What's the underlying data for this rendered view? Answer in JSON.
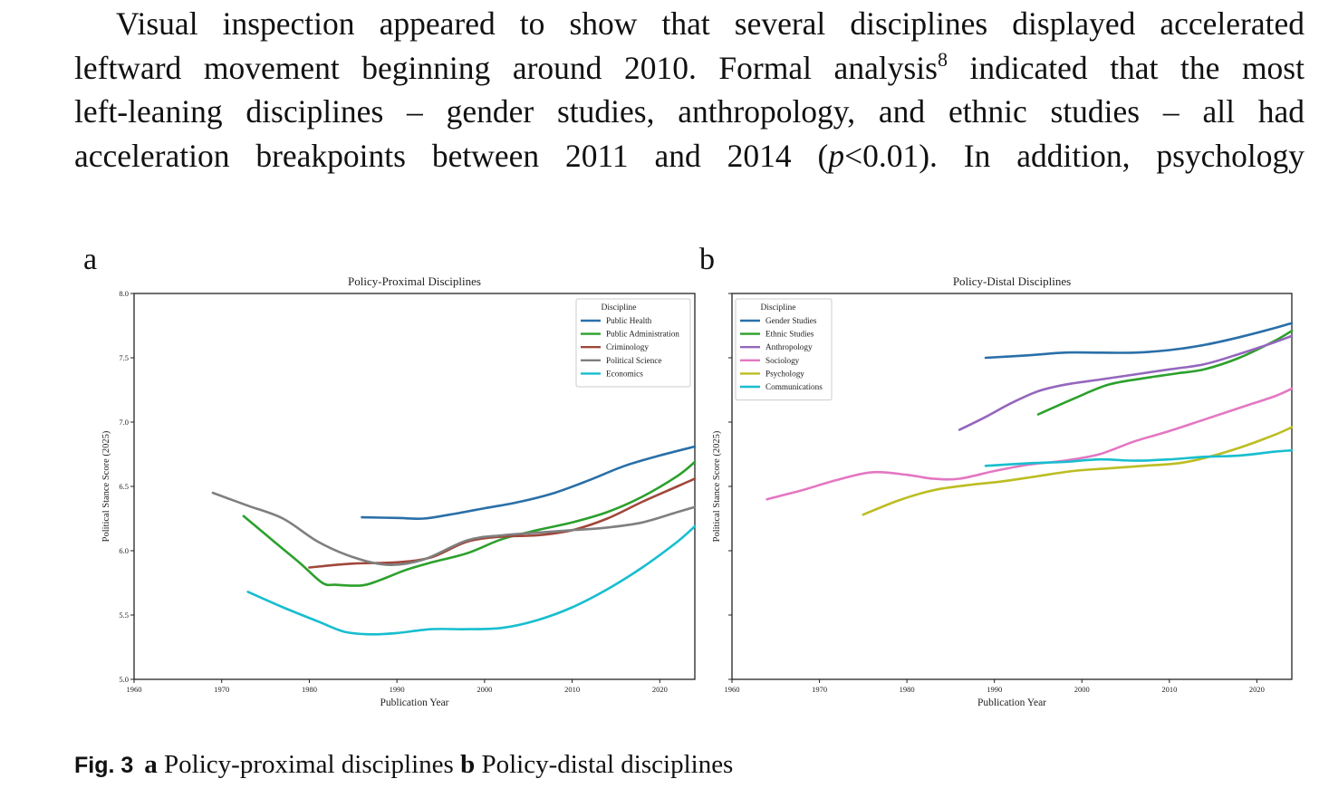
{
  "body_text": {
    "line1": "Visual inspection appeared to show that several disciplines displayed accelerated",
    "line2_pre": "leftward movement beginning around 2010. Formal analysis",
    "footnote": "8",
    "line2_post": " indicated that the most",
    "line3": "left-leaning disciplines – gender studies, anthropology, and ethnic studies – all had",
    "line4_pre": "acceleration breakpoints between 2011 and 2014 (",
    "line4_italic": "p",
    "line4_post": "<0.01). In addition, psychology"
  },
  "panel_labels": {
    "a": "a",
    "b": "b"
  },
  "caption": {
    "fig_label": "Fig. 3",
    "a_label": "a",
    "a_text": " Policy-proximal disciplines ",
    "b_label": "b",
    "b_text": " Policy-distal disciplines"
  },
  "chart_data": [
    {
      "type": "line",
      "title": "Policy-Proximal Disciplines",
      "xlabel": "Publication Year",
      "ylabel": "Political Stance Score (2025)",
      "xlim": [
        1960,
        2024
      ],
      "ylim": [
        5.0,
        8.0
      ],
      "xticks": [
        1960,
        1970,
        1980,
        1990,
        2000,
        2010,
        2020
      ],
      "yticks": [
        "5.0",
        "5.5",
        "6.0",
        "6.5",
        "7.0",
        "7.5",
        "8.0"
      ],
      "legend_title": "Discipline",
      "legend_position": "top-right",
      "series": [
        {
          "name": "Public Health",
          "color": "#2a6fa8",
          "x": [
            1986,
            1990,
            1993,
            1996,
            2000,
            2004,
            2008,
            2012,
            2016,
            2020,
            2024
          ],
          "y": [
            6.26,
            6.255,
            6.25,
            6.28,
            6.33,
            6.38,
            6.45,
            6.55,
            6.66,
            6.74,
            6.81
          ]
        },
        {
          "name": "Public Administration",
          "color": "#2ca02c",
          "x": [
            1972.5,
            1976,
            1979,
            1981.5,
            1983,
            1986,
            1988,
            1991,
            1994,
            1998,
            2002,
            2006,
            2010,
            2014,
            2018,
            2022,
            2024
          ],
          "y": [
            6.27,
            6.07,
            5.9,
            5.75,
            5.735,
            5.73,
            5.77,
            5.85,
            5.91,
            5.98,
            6.09,
            6.16,
            6.22,
            6.3,
            6.42,
            6.58,
            6.69
          ]
        },
        {
          "name": "Criminology",
          "color": "#a0473b",
          "x": [
            1980,
            1985,
            1990,
            1994,
            1998,
            2002,
            2006,
            2010,
            2014,
            2018,
            2022,
            2024
          ],
          "y": [
            5.87,
            5.9,
            5.91,
            5.95,
            6.07,
            6.11,
            6.12,
            6.16,
            6.25,
            6.38,
            6.5,
            6.56
          ]
        },
        {
          "name": "Political Science",
          "color": "#7f7f7f",
          "x": [
            1969,
            1973,
            1977,
            1981,
            1985,
            1989,
            1993,
            1998,
            2002,
            2006,
            2010,
            2014,
            2018,
            2022,
            2024
          ],
          "y": [
            6.45,
            6.35,
            6.25,
            6.07,
            5.95,
            5.89,
            5.93,
            6.08,
            6.12,
            6.14,
            6.16,
            6.18,
            6.22,
            6.3,
            6.34
          ]
        },
        {
          "name": "Economics",
          "color": "#17becf",
          "x": [
            1973,
            1977,
            1981,
            1984,
            1987,
            1990,
            1994,
            1998,
            2002,
            2006,
            2010,
            2014,
            2018,
            2022,
            2024
          ],
          "y": [
            5.68,
            5.56,
            5.45,
            5.37,
            5.35,
            5.36,
            5.39,
            5.39,
            5.4,
            5.46,
            5.56,
            5.7,
            5.87,
            6.07,
            6.19
          ]
        }
      ]
    },
    {
      "type": "line",
      "title": "Policy-Distal Disciplines",
      "xlabel": "Publication Year",
      "ylabel": "Political Stance Score (2025)",
      "xlim": [
        1960,
        2024
      ],
      "ylim": [
        5.0,
        8.0
      ],
      "xticks": [
        1960,
        1970,
        1980,
        1990,
        2000,
        2010,
        2020
      ],
      "yticks": [],
      "legend_title": "Discipline",
      "legend_position": "top-left",
      "series": [
        {
          "name": "Gender Studies",
          "color": "#2a6fa8",
          "x": [
            1989,
            1994,
            1998,
            2002,
            2006,
            2010,
            2014,
            2018,
            2022,
            2024
          ],
          "y": [
            7.5,
            7.52,
            7.54,
            7.54,
            7.54,
            7.56,
            7.6,
            7.66,
            7.73,
            7.77
          ]
        },
        {
          "name": "Ethnic Studies",
          "color": "#2ca02c",
          "x": [
            1995,
            1999,
            2003,
            2007,
            2011,
            2014,
            2018,
            2022,
            2024
          ],
          "y": [
            7.06,
            7.18,
            7.29,
            7.34,
            7.38,
            7.41,
            7.5,
            7.63,
            7.71
          ]
        },
        {
          "name": "Anthropology",
          "color": "#9467bd",
          "x": [
            1986,
            1989,
            1992,
            1995,
            1998,
            2002,
            2006,
            2010,
            2014,
            2018,
            2022,
            2024
          ],
          "y": [
            6.94,
            7.04,
            7.15,
            7.24,
            7.29,
            7.33,
            7.37,
            7.41,
            7.45,
            7.53,
            7.62,
            7.67
          ]
        },
        {
          "name": "Sociology",
          "color": "#e377c2",
          "x": [
            1964,
            1968,
            1972,
            1976,
            1980,
            1983,
            1986,
            1990,
            1994,
            1998,
            2002,
            2006,
            2010,
            2014,
            2018,
            2022,
            2024
          ],
          "y": [
            6.4,
            6.47,
            6.55,
            6.61,
            6.59,
            6.56,
            6.56,
            6.62,
            6.67,
            6.7,
            6.75,
            6.85,
            6.93,
            7.02,
            7.11,
            7.2,
            7.26
          ]
        },
        {
          "name": "Psychology",
          "color": "#bcbd22",
          "x": [
            1975,
            1979,
            1983,
            1987,
            1991,
            1995,
            1999,
            2003,
            2007,
            2011,
            2014,
            2018,
            2022,
            2024
          ],
          "y": [
            6.28,
            6.39,
            6.47,
            6.51,
            6.54,
            6.58,
            6.62,
            6.64,
            6.66,
            6.68,
            6.72,
            6.8,
            6.9,
            6.96
          ]
        },
        {
          "name": "Communications",
          "color": "#17becf",
          "x": [
            1989,
            1994,
            1998,
            2002,
            2006,
            2010,
            2014,
            2018,
            2022,
            2024
          ],
          "y": [
            6.66,
            6.68,
            6.69,
            6.71,
            6.7,
            6.71,
            6.73,
            6.74,
            6.77,
            6.78
          ]
        }
      ]
    }
  ]
}
